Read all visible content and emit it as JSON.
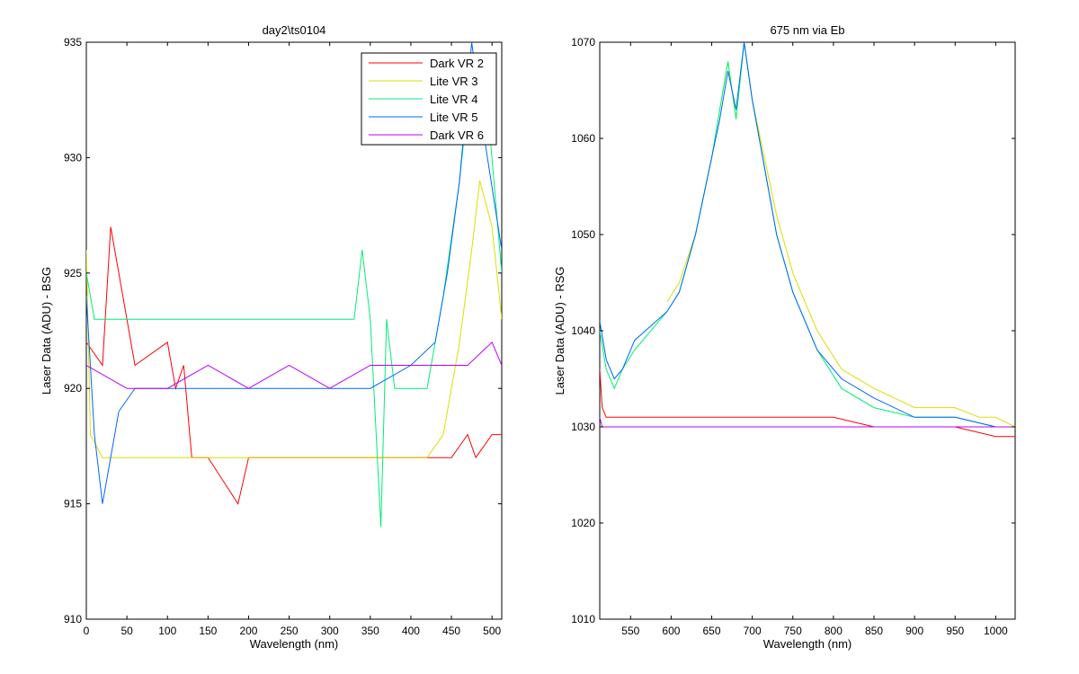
{
  "figure": {
    "background": "#ffffff"
  },
  "chart_data": [
    {
      "type": "line",
      "title": "day2\\ts0104",
      "xlabel": "Wavelength (nm)",
      "ylabel": "Laser Data (ADU) - BSG",
      "xlim": [
        0,
        512
      ],
      "ylim": [
        910,
        935
      ],
      "xticks": [
        0,
        50,
        100,
        150,
        200,
        250,
        300,
        350,
        400,
        450,
        500
      ],
      "yticks": [
        910,
        915,
        920,
        925,
        930,
        935
      ],
      "legend": {
        "placement": "top-right"
      },
      "series": [
        {
          "name": "Dark VR 2",
          "color": "#ff0000",
          "x": [
            0,
            20,
            30,
            60,
            100,
            110,
            120,
            130,
            150,
            187,
            200,
            300,
            350,
            400,
            450,
            470,
            480,
            500,
            512
          ],
          "y": [
            922,
            921,
            927,
            921,
            922,
            920,
            921,
            917,
            917,
            915,
            917,
            917,
            917,
            917,
            917,
            918,
            917,
            918,
            918
          ]
        },
        {
          "name": "Lite VR 3",
          "color": "#dddd00",
          "x": [
            0,
            5,
            20,
            50,
            100,
            150,
            200,
            250,
            300,
            350,
            400,
            420,
            440,
            460,
            475,
            485,
            500,
            512
          ],
          "y": [
            926,
            918,
            917,
            917,
            917,
            917,
            917,
            917,
            917,
            917,
            917,
            917,
            918,
            922,
            926,
            929,
            927,
            923
          ]
        },
        {
          "name": "Lite VR 4",
          "color": "#00ee77",
          "x": [
            0,
            10,
            50,
            100,
            150,
            200,
            250,
            300,
            330,
            340,
            350,
            363,
            370,
            380,
            420,
            440,
            460,
            475,
            495,
            512
          ],
          "y": [
            925,
            923,
            923,
            923,
            923,
            923,
            923,
            923,
            923,
            926,
            923,
            914,
            923,
            920,
            920,
            924,
            929,
            934,
            932,
            925
          ]
        },
        {
          "name": "Lite VR 5",
          "color": "#0066ff",
          "x": [
            0,
            10,
            20,
            40,
            60,
            100,
            150,
            200,
            250,
            300,
            350,
            400,
            430,
            445,
            460,
            475,
            490,
            512
          ],
          "y": [
            924,
            918,
            915,
            919,
            920,
            920,
            920,
            920,
            920,
            920,
            920,
            921,
            922,
            925,
            929,
            935,
            931,
            926
          ]
        },
        {
          "name": "Dark VR 6",
          "color": "#bb00ff",
          "x": [
            0,
            50,
            100,
            150,
            200,
            250,
            300,
            350,
            400,
            430,
            450,
            470,
            500,
            512
          ],
          "y": [
            921,
            920,
            920,
            921,
            920,
            921,
            920,
            921,
            921,
            921,
            921,
            921,
            922,
            921
          ]
        }
      ]
    },
    {
      "type": "line",
      "title": "675 nm via Eb",
      "xlabel": "Wavelength (nm)",
      "ylabel": "Laser Data (ADU) - RSG",
      "xlim": [
        512,
        1024
      ],
      "ylim": [
        1010,
        1070
      ],
      "xticks": [
        550,
        600,
        650,
        700,
        750,
        800,
        850,
        900,
        950,
        1000
      ],
      "yticks": [
        1010,
        1020,
        1030,
        1040,
        1050,
        1060,
        1070
      ],
      "series": [
        {
          "name": "Dark VR 2",
          "color": "#ff0000",
          "x": [
            512,
            515,
            520,
            550,
            600,
            650,
            700,
            750,
            800,
            850,
            900,
            950,
            1000,
            1024
          ],
          "y": [
            1036,
            1032,
            1031,
            1031,
            1031,
            1031,
            1031,
            1031,
            1031,
            1030,
            1030,
            1030,
            1029,
            1029
          ]
        },
        {
          "name": "Lite VR 3",
          "color": "#dddd00",
          "x": [
            595,
            610,
            630,
            650,
            660,
            670,
            680,
            690,
            700,
            715,
            730,
            750,
            780,
            810,
            850,
            900,
            950,
            980,
            1000,
            1024
          ],
          "y": [
            1043,
            1045,
            1050,
            1058,
            1063,
            1068,
            1062,
            1070,
            1064,
            1058,
            1052,
            1046,
            1040,
            1036,
            1034,
            1032,
            1032,
            1031,
            1031,
            1030
          ]
        },
        {
          "name": "Lite VR 4",
          "color": "#00ee77",
          "x": [
            512,
            520,
            530,
            540,
            555,
            595,
            610,
            630,
            650,
            660,
            670,
            680,
            690,
            700,
            715,
            730,
            750,
            780,
            810,
            850,
            900,
            950,
            1000,
            1024
          ],
          "y": [
            1040,
            1036,
            1034,
            1036,
            1038,
            1042,
            1044,
            1050,
            1058,
            1063,
            1068,
            1062,
            1070,
            1064,
            1057,
            1050,
            1044,
            1038,
            1034,
            1032,
            1031,
            1031,
            1030,
            1030
          ]
        },
        {
          "name": "Lite VR 5",
          "color": "#0066ff",
          "x": [
            512,
            520,
            530,
            540,
            555,
            595,
            610,
            630,
            650,
            660,
            670,
            680,
            690,
            700,
            715,
            730,
            750,
            780,
            810,
            850,
            900,
            950,
            1000,
            1024
          ],
          "y": [
            1041,
            1037,
            1035,
            1036,
            1039,
            1042,
            1044,
            1050,
            1058,
            1062,
            1067,
            1063,
            1070,
            1064,
            1057,
            1050,
            1044,
            1038,
            1035,
            1033,
            1031,
            1031,
            1030,
            1030
          ]
        },
        {
          "name": "Dark VR 6",
          "color": "#bb00ff",
          "x": [
            512,
            515,
            520,
            550,
            600,
            650,
            700,
            750,
            800,
            850,
            900,
            950,
            1000,
            1024
          ],
          "y": [
            1031,
            1030,
            1030,
            1030,
            1030,
            1030,
            1030,
            1030,
            1030,
            1030,
            1030,
            1030,
            1030,
            1030
          ]
        }
      ]
    }
  ]
}
